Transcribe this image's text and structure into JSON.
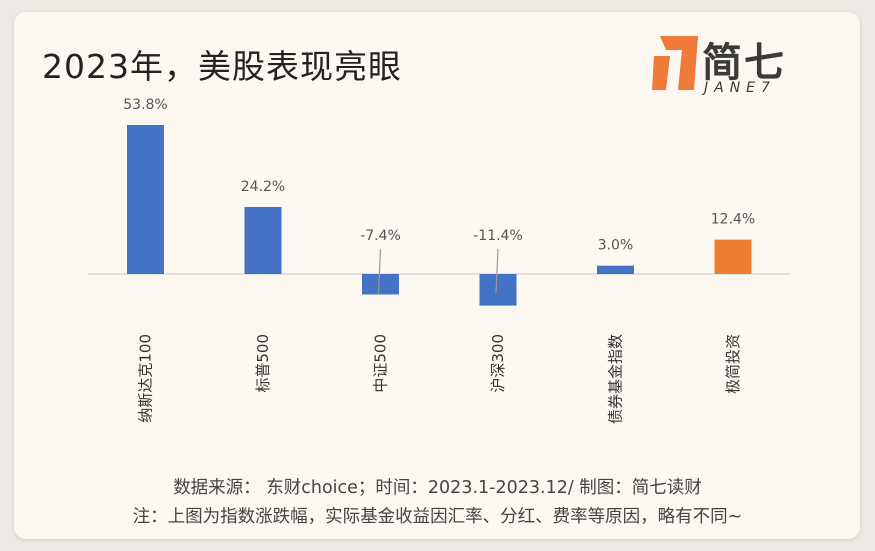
{
  "header": {
    "title": "2023年，美股表现亮眼",
    "logo_text": "简七",
    "logo_sub": "JANE7",
    "logo_color": "#f07a3a"
  },
  "footer": {
    "source": "数据来源： 东财choice；时间：2023.1-2023.12/ 制图：简七读财",
    "note": "注：上图为指数涨跌幅，实际基金收益因汇率、分红、费率等原因，略有不同~"
  },
  "chart_data": {
    "type": "bar",
    "title": "2023年，美股表现亮眼",
    "categories": [
      "纳斯达克100",
      "标普500",
      "中证500",
      "沪深300",
      "债券基金指数",
      "极简投资"
    ],
    "values": [
      53.8,
      24.2,
      -7.4,
      -11.4,
      3.0,
      12.4
    ],
    "data_labels": [
      "53.8%",
      "24.2%",
      "-7.4%",
      "-11.4%",
      "3.0%",
      "12.4%"
    ],
    "colors": [
      "#4472c4",
      "#4472c4",
      "#4472c4",
      "#4472c4",
      "#4472c4",
      "#ed7d31"
    ],
    "unit": "%",
    "grid": false,
    "legend": "none"
  }
}
